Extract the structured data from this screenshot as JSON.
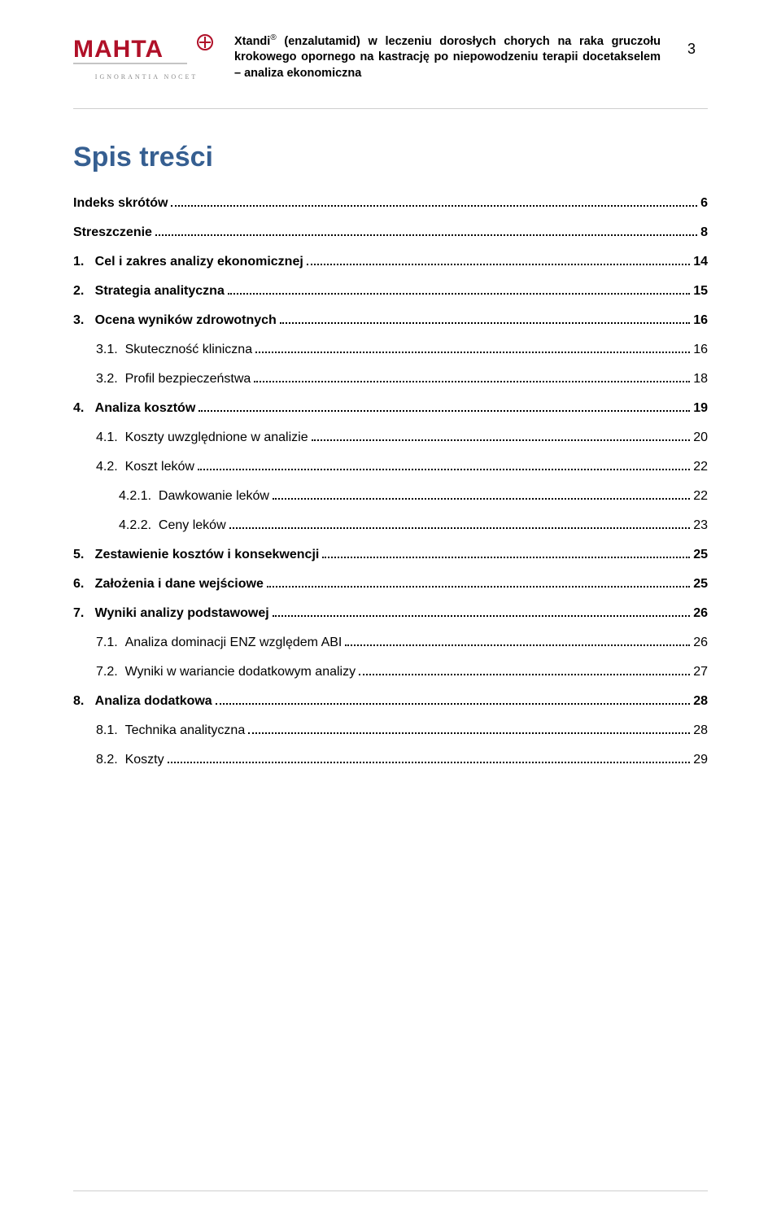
{
  "header": {
    "logo_text": "MAHTA",
    "logo_tagline": "IGNORANTIA NOCET",
    "logo_color": "#b01028",
    "title_html": "Xtandi",
    "registered": "®",
    "description": " (enzalutamid) w leczeniu dorosłych chorych na raka gruczołu krokowego opornego na kastrację po niepowodzeniu terapii docetakselem – analiza ekonomiczna",
    "page_number": "3"
  },
  "toc_title": "Spis treści",
  "toc": [
    {
      "level": 0,
      "label": "Indeks skrótów",
      "page": "6"
    },
    {
      "level": 0,
      "label": "Streszczenie",
      "page": "8"
    },
    {
      "level": 0,
      "label": "1.   Cel i zakres analizy ekonomicznej",
      "page": "14"
    },
    {
      "level": 0,
      "label": "2.   Strategia analityczna",
      "page": "15"
    },
    {
      "level": 0,
      "label": "3.   Ocena wyników zdrowotnych",
      "page": "16"
    },
    {
      "level": 1,
      "label": "3.1.  Skuteczność kliniczna",
      "page": "16"
    },
    {
      "level": 1,
      "label": "3.2.  Profil bezpieczeństwa",
      "page": "18"
    },
    {
      "level": 0,
      "label": "4.   Analiza kosztów",
      "page": "19"
    },
    {
      "level": 1,
      "label": "4.1.  Koszty uwzględnione w analizie",
      "page": "20"
    },
    {
      "level": 1,
      "label": "4.2.  Koszt leków",
      "page": "22"
    },
    {
      "level": 2,
      "label": "4.2.1.  Dawkowanie leków",
      "page": "22"
    },
    {
      "level": 2,
      "label": "4.2.2.  Ceny leków",
      "page": "23"
    },
    {
      "level": 0,
      "label": "5.   Zestawienie kosztów i konsekwencji",
      "page": "25"
    },
    {
      "level": 0,
      "label": "6.   Założenia i dane wejściowe",
      "page": "25"
    },
    {
      "level": 0,
      "label": "7.   Wyniki analizy podstawowej",
      "page": "26"
    },
    {
      "level": 1,
      "label": "7.1.  Analiza dominacji ENZ względem ABI",
      "page": "26"
    },
    {
      "level": 1,
      "label": "7.2.  Wyniki w wariancie dodatkowym analizy",
      "page": "27"
    },
    {
      "level": 0,
      "label": "8.   Analiza dodatkowa",
      "page": "28"
    },
    {
      "level": 1,
      "label": "8.1.  Technika analityczna",
      "page": "28"
    },
    {
      "level": 1,
      "label": "8.2.  Koszty",
      "page": "29"
    }
  ]
}
